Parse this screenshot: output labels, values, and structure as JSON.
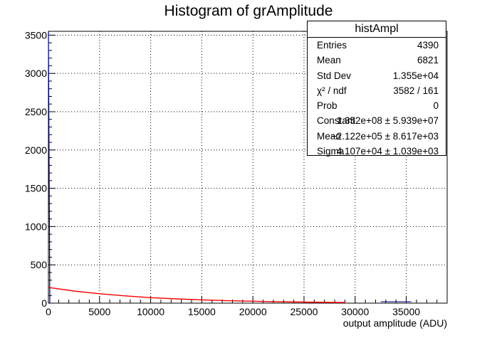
{
  "title": "Histogram of grAmplitude",
  "stats": {
    "name": "histAmpl",
    "rows": [
      {
        "key": "Entries",
        "value": "4390"
      },
      {
        "key": "Mean",
        "value": "6821"
      },
      {
        "key": "Std Dev",
        "value": "1.355e+04"
      },
      {
        "key": "χ² / ndf",
        "value": "3582 / 161"
      },
      {
        "key": "Prob",
        "value": "0"
      },
      {
        "key": "Constant",
        "value": "1.352e+08 ± 5.939e+07"
      },
      {
        "key": "Mean",
        "value": "−2.122e+05 ± 8.617e+03"
      },
      {
        "key": "Sigma",
        "value": "4.107e+04 ± 1.039e+03"
      }
    ]
  },
  "chart_data": {
    "type": "line",
    "title": "Histogram of grAmplitude",
    "xlabel": "output amplitude (ADU)",
    "ylabel": "",
    "xlim": [
      0,
      39000
    ],
    "ylim": [
      0,
      3550
    ],
    "xticks": [
      0,
      5000,
      10000,
      15000,
      20000,
      25000,
      30000,
      35000
    ],
    "yticks": [
      0,
      500,
      1000,
      1500,
      2000,
      2500,
      3000,
      3500
    ],
    "grid": true,
    "fit": {
      "x": [
        0,
        2500,
        5000,
        7500,
        10000,
        12500,
        15000,
        17500,
        20000,
        22500,
        25000,
        27500,
        29000
      ],
      "y": [
        205,
        158,
        123,
        95,
        72,
        56,
        43,
        32,
        25,
        18,
        14,
        10,
        8
      ]
    },
    "colors": {
      "fit": "#ff0000",
      "histogram": "#00008b",
      "grid": "#000000"
    }
  }
}
